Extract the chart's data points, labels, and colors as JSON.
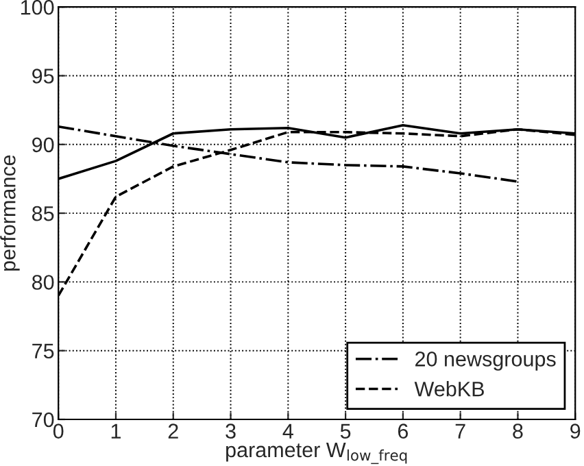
{
  "chart_data": {
    "type": "line",
    "xlabel": "parameter W$_{low_freq}$",
    "ylabel": "performance",
    "x": [
      0,
      1,
      2,
      3,
      4,
      5,
      6,
      7,
      8,
      9
    ],
    "series": [
      {
        "color": "#000000",
        "line_style": "solid",
        "values": [
          87.5,
          88.8,
          90.8,
          91.1,
          91.2,
          90.5,
          91.4,
          90.8,
          91.1,
          90.8
        ]
      },
      {
        "name": "20 newsgroups",
        "color": "#000000",
        "line_style": "dashdot",
        "values": [
          91.3,
          90.6,
          89.9,
          89.3,
          88.7,
          88.5,
          88.4,
          87.9,
          87.3,
          null
        ]
      },
      {
        "name": "WebKB",
        "color": "#000000",
        "line_style": "dashed",
        "values": [
          79.0,
          86.2,
          88.4,
          89.6,
          90.9,
          90.9,
          90.8,
          90.6,
          91.1,
          90.7
        ]
      }
    ],
    "xlim": [
      0,
      9
    ],
    "xticks": [
      0,
      1,
      2,
      3,
      4,
      5,
      6,
      7,
      8,
      9
    ],
    "ylim": [
      70,
      100
    ],
    "yticks": [
      70,
      75,
      80,
      85,
      90,
      95,
      100
    ],
    "grid": true,
    "legend": "bottom right",
    "marker": "none"
  }
}
